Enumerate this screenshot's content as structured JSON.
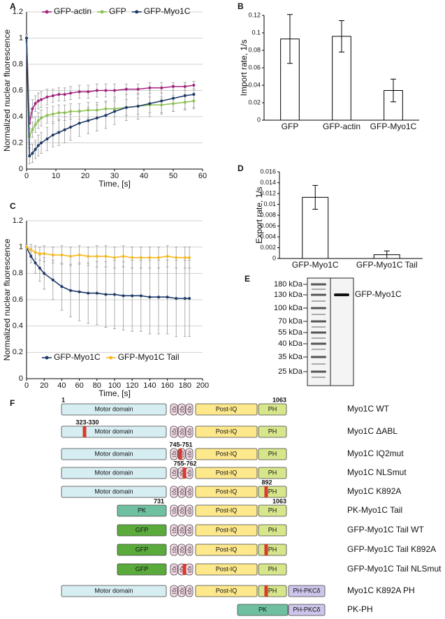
{
  "chart_data": [
    {
      "panel": "A",
      "type": "line",
      "xlabel": "Time, [s]",
      "ylabel": "Normalized nuclear fluorescence",
      "xlim": [
        0,
        60
      ],
      "ylim": [
        0,
        1.2
      ],
      "xticks": [
        0,
        10,
        20,
        30,
        40,
        50,
        60
      ],
      "yticks": [
        0,
        0.2,
        0.4,
        0.6,
        0.8,
        1,
        1.2
      ],
      "grid": true,
      "legend": "upper left",
      "x": [
        0,
        1,
        2,
        3,
        4,
        5,
        7,
        9,
        11,
        13,
        15,
        18,
        21,
        24,
        27,
        30,
        34,
        38,
        42,
        46,
        50,
        54,
        57
      ],
      "series": [
        {
          "name": "GFP-actin",
          "color": "#a3247f",
          "values": [
            1,
            0.35,
            0.46,
            0.5,
            0.52,
            0.53,
            0.55,
            0.56,
            0.57,
            0.57,
            0.58,
            0.59,
            0.59,
            0.6,
            0.6,
            0.6,
            0.61,
            0.61,
            0.62,
            0.62,
            0.63,
            0.63,
            0.64
          ],
          "errors": [
            0.02,
            0.08,
            0.07,
            0.06,
            0.06,
            0.06,
            0.06,
            0.05,
            0.05,
            0.05,
            0.05,
            0.05,
            0.05,
            0.05,
            0.05,
            0.05,
            0.04,
            0.04,
            0.04,
            0.04,
            0.03,
            0.03,
            0.03
          ]
        },
        {
          "name": "GFP",
          "color": "#8cc152",
          "values": [
            1,
            0.25,
            0.3,
            0.34,
            0.37,
            0.39,
            0.41,
            0.42,
            0.43,
            0.43,
            0.44,
            0.44,
            0.45,
            0.45,
            0.46,
            0.46,
            0.47,
            0.48,
            0.49,
            0.49,
            0.5,
            0.51,
            0.52
          ],
          "errors": [
            0.02,
            0.06,
            0.06,
            0.06,
            0.06,
            0.06,
            0.06,
            0.06,
            0.06,
            0.06,
            0.06,
            0.06,
            0.06,
            0.06,
            0.06,
            0.06,
            0.06,
            0.06,
            0.06,
            0.06,
            0.06,
            0.06,
            0.06
          ]
        },
        {
          "name": "GFP-Myo1C",
          "color": "#1f3a68",
          "values": [
            1,
            0.1,
            0.12,
            0.15,
            0.18,
            0.2,
            0.23,
            0.26,
            0.28,
            0.3,
            0.32,
            0.35,
            0.37,
            0.39,
            0.41,
            0.44,
            0.47,
            0.48,
            0.5,
            0.52,
            0.54,
            0.56,
            0.57
          ],
          "errors": [
            0.03,
            0.06,
            0.07,
            0.07,
            0.08,
            0.08,
            0.09,
            0.09,
            0.1,
            0.1,
            0.1,
            0.1,
            0.1,
            0.1,
            0.1,
            0.1,
            0.1,
            0.1,
            0.1,
            0.1,
            0.1,
            0.1,
            0.1
          ]
        }
      ]
    },
    {
      "panel": "B",
      "type": "bar",
      "ylabel": "Import rate, 1/s",
      "color": "#ffffff",
      "ylim": [
        0,
        0.12
      ],
      "yticks": [
        0,
        0.02,
        0.04,
        0.06,
        0.08,
        0.1,
        0.12
      ],
      "grid": false,
      "categories": [
        "GFP",
        "GFP-actin",
        "GFP-Myo1C"
      ],
      "values": [
        0.093,
        0.096,
        0.034
      ],
      "errors": [
        0.028,
        0.018,
        0.013
      ]
    },
    {
      "panel": "C",
      "type": "line",
      "xlabel": "Time, [s]",
      "ylabel": "Normalized nuclear fluorescence",
      "xlim": [
        0,
        200
      ],
      "ylim": [
        0,
        1.2
      ],
      "xticks": [
        0,
        20,
        40,
        60,
        80,
        100,
        120,
        140,
        160,
        180,
        200
      ],
      "yticks": [
        0,
        0.2,
        0.4,
        0.6,
        0.8,
        1,
        1.2
      ],
      "grid": true,
      "legend": "lower left",
      "x": [
        0,
        5,
        10,
        15,
        20,
        30,
        40,
        50,
        60,
        70,
        80,
        90,
        100,
        110,
        120,
        130,
        140,
        150,
        160,
        170,
        180,
        185
      ],
      "series": [
        {
          "name": "GFP-Myo1C",
          "color": "#1f3a68",
          "values": [
            1,
            0.93,
            0.88,
            0.84,
            0.8,
            0.75,
            0.7,
            0.67,
            0.66,
            0.65,
            0.65,
            0.64,
            0.64,
            0.63,
            0.63,
            0.63,
            0.62,
            0.62,
            0.62,
            0.61,
            0.61,
            0.61
          ],
          "errors": [
            0.02,
            0.05,
            0.08,
            0.1,
            0.12,
            0.15,
            0.18,
            0.2,
            0.22,
            0.23,
            0.24,
            0.25,
            0.26,
            0.26,
            0.27,
            0.27,
            0.28,
            0.28,
            0.28,
            0.29,
            0.29,
            0.29
          ]
        },
        {
          "name": "GFP-Myo1C Tail",
          "color": "#f5b820",
          "values": [
            1,
            0.98,
            0.96,
            0.95,
            0.95,
            0.94,
            0.94,
            0.93,
            0.94,
            0.93,
            0.93,
            0.93,
            0.92,
            0.93,
            0.92,
            0.92,
            0.92,
            0.92,
            0.93,
            0.92,
            0.92,
            0.92
          ],
          "errors": [
            0.02,
            0.04,
            0.05,
            0.05,
            0.06,
            0.06,
            0.07,
            0.07,
            0.07,
            0.07,
            0.08,
            0.08,
            0.08,
            0.08,
            0.08,
            0.08,
            0.08,
            0.08,
            0.08,
            0.08,
            0.08,
            0.08
          ]
        }
      ]
    },
    {
      "panel": "D",
      "type": "bar",
      "ylabel": "Export rate, 1/s",
      "color": "#ffffff",
      "ylim": [
        0,
        0.016
      ],
      "yticks": [
        0,
        0.002,
        0.004,
        0.006,
        0.008,
        0.01,
        0.012,
        0.014,
        0.016
      ],
      "grid": false,
      "categories": [
        "GFP-Myo1C",
        "GFP-Myo1C Tail"
      ],
      "values": [
        0.0113,
        0.0007
      ],
      "errors": [
        0.0022,
        0.0007
      ]
    }
  ],
  "gel": {
    "panel": "E",
    "markers": [
      "180 kDa",
      "130 kDa",
      "100 kDa",
      "70 kDa",
      "55 kDa",
      "40 kDa",
      "35 kDa",
      "25 kDa"
    ],
    "band_label": "GFP-Myo1C"
  },
  "constructs": {
    "panel": "F",
    "rows": [
      {
        "name": "Myo1C WT",
        "parts": [
          "Motor domain",
          "IQ1",
          "IQ2",
          "IQ3",
          "Post-IQ",
          "PH"
        ],
        "annotations": [
          "1",
          "1063"
        ]
      },
      {
        "name": "Myo1C ΔABL",
        "parts": [
          "Motor domain",
          "IQ1",
          "IQ2",
          "IQ3",
          "Post-IQ",
          "PH"
        ],
        "annotations": [
          "323-330"
        ]
      },
      {
        "name": "Myo1C IQ2mut",
        "parts": [
          "Motor domain",
          "IQ1",
          "IQ2",
          "IQ3",
          "Post-IQ",
          "PH"
        ],
        "annotations": [
          "745-751"
        ]
      },
      {
        "name": "Myo1C NLSmut",
        "parts": [
          "Motor domain",
          "IQ1",
          "IQ2",
          "IQ3",
          "Post-IQ",
          "PH"
        ],
        "annotations": [
          "755-762"
        ]
      },
      {
        "name": "Myo1C K892A",
        "parts": [
          "Motor domain",
          "IQ1",
          "IQ2",
          "IQ3",
          "Post-IQ",
          "PH"
        ],
        "annotations": [
          "892"
        ]
      },
      {
        "name": "PK-Myo1C Tail",
        "parts": [
          "PK",
          "IQ1",
          "IQ2",
          "IQ3",
          "Post-IQ",
          "PH"
        ],
        "annotations": [
          "731",
          "1063"
        ]
      },
      {
        "name": "GFP-Myo1C Tail WT",
        "parts": [
          "GFP",
          "IQ1",
          "IQ2",
          "IQ3",
          "Post-IQ",
          "PH"
        ],
        "annotations": []
      },
      {
        "name": "GFP-Myo1C Tail K892A",
        "parts": [
          "GFP",
          "IQ1",
          "IQ2",
          "IQ3",
          "Post-IQ",
          "PH"
        ],
        "annotations": []
      },
      {
        "name": "GFP-Myo1C Tail NLSmut",
        "parts": [
          "GFP",
          "IQ1",
          "IQ2",
          "IQ3",
          "Post-IQ",
          "PH"
        ],
        "annotations": []
      },
      {
        "name": "Myo1C K892A PH",
        "parts": [
          "Motor domain",
          "IQ1",
          "IQ2",
          "IQ3",
          "Post-IQ",
          "PH",
          "PH-PKCδ"
        ],
        "annotations": []
      },
      {
        "name": "PK-PH",
        "parts": [
          "PK",
          "PH-PKCδ"
        ],
        "annotations": []
      }
    ]
  }
}
